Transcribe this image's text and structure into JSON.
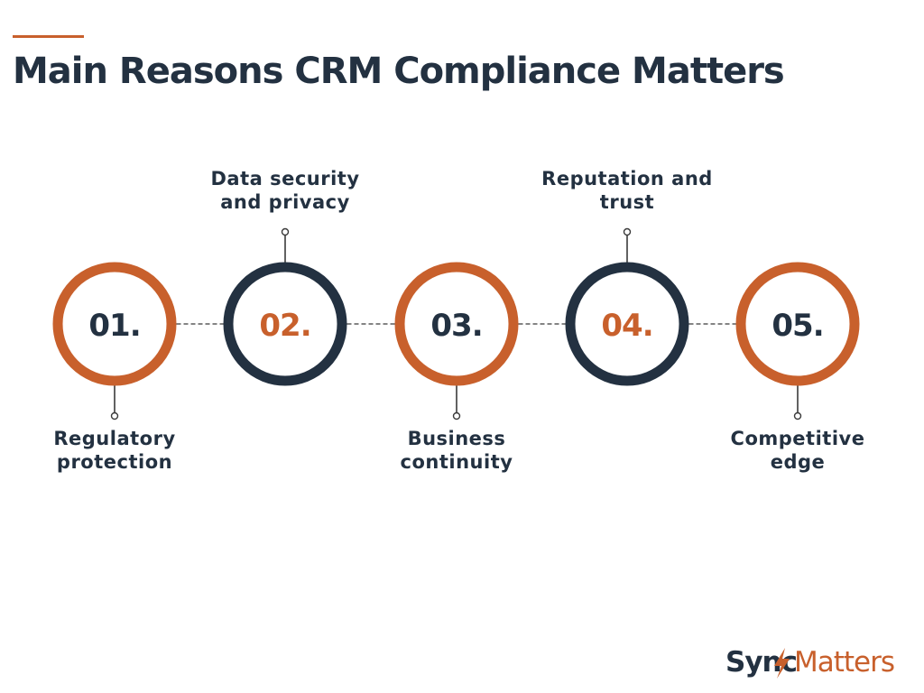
{
  "title": "Main Reasons CRM Compliance Matters",
  "colors": {
    "orange": "#c8602c",
    "navy": "#233141",
    "text": "#233141"
  },
  "steps": [
    {
      "number": "01.",
      "label_lines": [
        "Regulatory",
        "protection"
      ],
      "label_position": "below",
      "ring_color": "orange",
      "number_color": "navy"
    },
    {
      "number": "02.",
      "label_lines": [
        "Data security",
        "and privacy"
      ],
      "label_position": "above",
      "ring_color": "navy",
      "number_color": "orange"
    },
    {
      "number": "03.",
      "label_lines": [
        "Business",
        "continuity"
      ],
      "label_position": "below",
      "ring_color": "orange",
      "number_color": "navy"
    },
    {
      "number": "04.",
      "label_lines": [
        "Reputation and",
        "trust"
      ],
      "label_position": "above",
      "ring_color": "navy",
      "number_color": "orange"
    },
    {
      "number": "05.",
      "label_lines": [
        "Competitive",
        "edge"
      ],
      "label_position": "below",
      "ring_color": "orange",
      "number_color": "navy"
    }
  ],
  "logo": {
    "text_left": "Sync",
    "text_right": "Matters",
    "icon": "lightning-bolt-icon"
  }
}
